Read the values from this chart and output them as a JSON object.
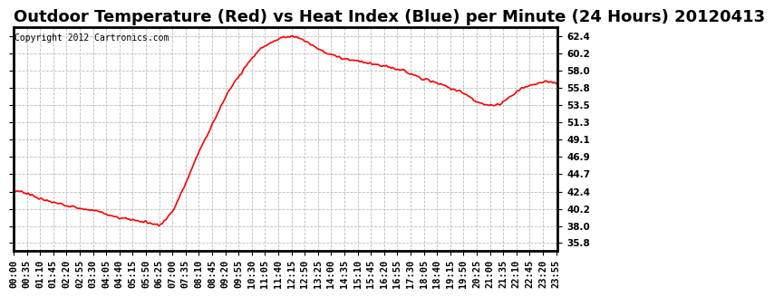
{
  "title": "Outdoor Temperature (Red) vs Heat Index (Blue) per Minute (24 Hours) 20120413",
  "copyright_text": "Copyright 2012 Cartronics.com",
  "y_ticks": [
    35.8,
    38.0,
    40.2,
    42.4,
    44.7,
    46.9,
    49.1,
    51.3,
    53.5,
    55.8,
    58.0,
    60.2,
    62.4
  ],
  "ylim": [
    34.8,
    63.6
  ],
  "x_tick_labels": [
    "00:00",
    "00:35",
    "01:10",
    "01:45",
    "02:20",
    "02:55",
    "03:30",
    "04:05",
    "04:40",
    "05:15",
    "05:50",
    "06:25",
    "07:00",
    "07:35",
    "08:10",
    "08:45",
    "09:20",
    "09:55",
    "10:30",
    "11:05",
    "11:40",
    "12:15",
    "12:50",
    "13:25",
    "14:00",
    "14:35",
    "15:10",
    "15:45",
    "16:20",
    "16:55",
    "17:30",
    "18:05",
    "18:40",
    "19:15",
    "19:50",
    "20:25",
    "21:00",
    "21:35",
    "22:10",
    "22:45",
    "23:20",
    "23:55"
  ],
  "line_color_red": "#FF0000",
  "bg_color": "#FFFFFF",
  "grid_color": "#BBBBBB",
  "title_fontsize": 13,
  "tick_fontsize": 7.5,
  "copyright_fontsize": 7,
  "line_width": 1.2,
  "curve_keypoints_x": [
    0,
    10,
    35,
    70,
    105,
    130,
    155,
    180,
    215,
    245,
    265,
    290,
    315,
    350,
    385,
    420,
    455,
    490,
    525,
    560,
    600,
    630,
    660,
    700,
    735,
    770,
    805,
    840,
    875,
    910,
    945,
    980,
    1010,
    1040,
    1080,
    1110,
    1130,
    1150,
    1170,
    1200,
    1230,
    1255,
    1280,
    1310,
    1350,
    1380,
    1410,
    1439
  ],
  "curve_keypoints_y": [
    42.4,
    42.5,
    42.2,
    41.5,
    41.0,
    40.8,
    40.5,
    40.2,
    40.0,
    39.5,
    39.2,
    39.0,
    38.8,
    38.5,
    38.2,
    40.0,
    43.5,
    47.5,
    51.0,
    54.5,
    57.5,
    59.5,
    61.0,
    62.0,
    62.4,
    61.8,
    60.8,
    60.0,
    59.5,
    59.2,
    58.8,
    58.5,
    58.2,
    57.8,
    57.0,
    56.5,
    56.2,
    55.8,
    55.5,
    54.8,
    53.8,
    53.5,
    53.6,
    54.5,
    55.8,
    56.3,
    56.5,
    56.2
  ]
}
